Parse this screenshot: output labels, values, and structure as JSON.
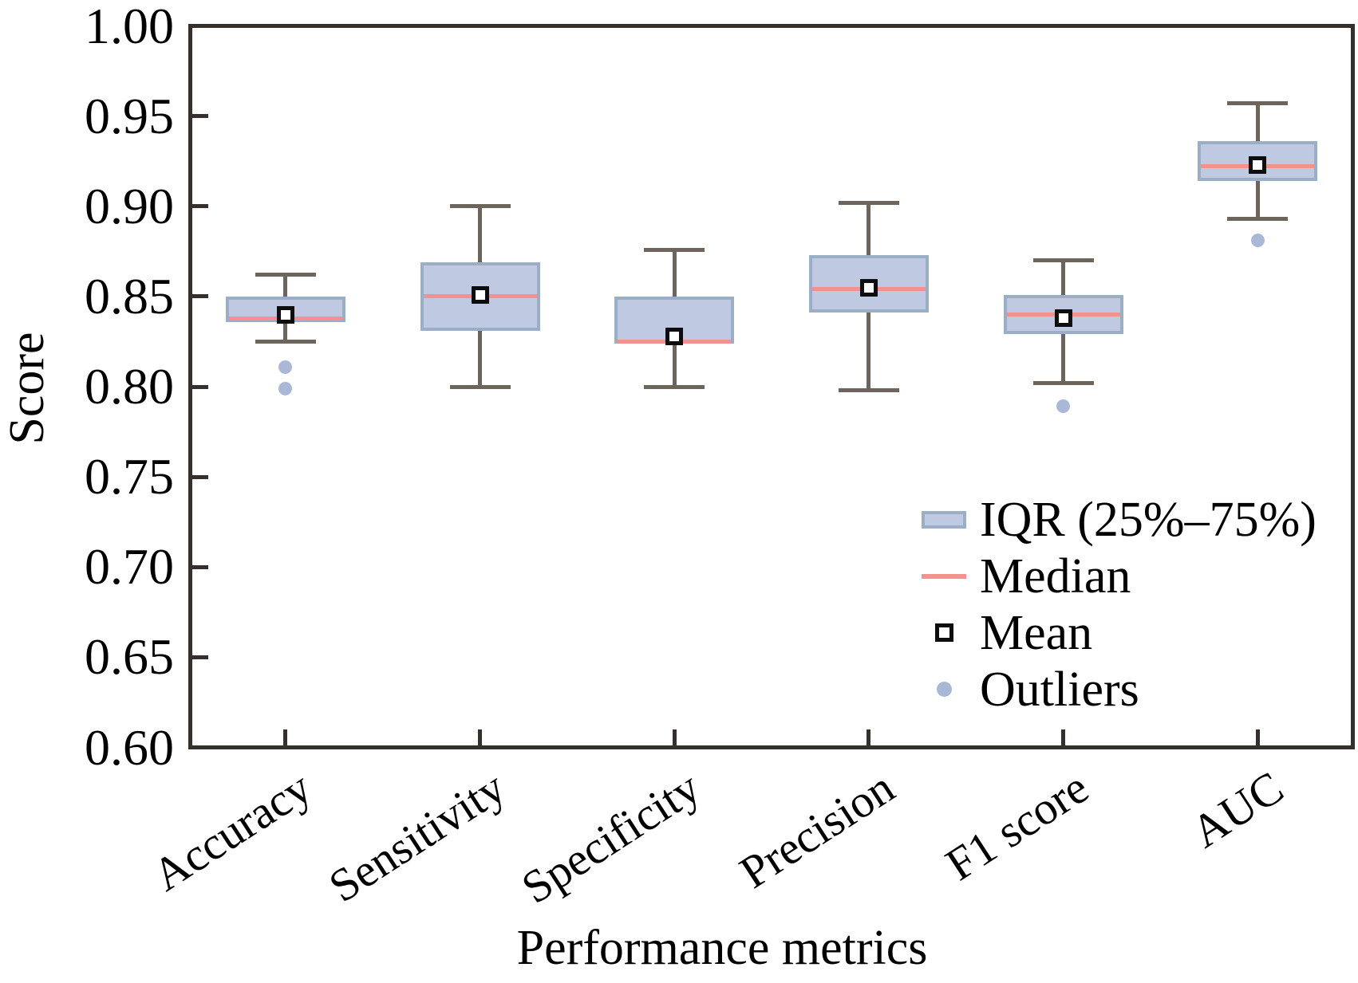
{
  "figure": {
    "title": "",
    "y_axis_title": "Score",
    "x_axis_title": "Performance metrics"
  },
  "legend": {
    "items": [
      {
        "icon": "iqr-swatch",
        "label": "IQR (25%–75%)"
      },
      {
        "icon": "median-line",
        "label": "Median"
      },
      {
        "icon": "mean-marker",
        "label": "Mean"
      },
      {
        "icon": "outlier-dot",
        "label": "Outliers"
      }
    ]
  },
  "chart_data": {
    "type": "boxplot",
    "title": "",
    "xlabel": "Performance metrics",
    "ylabel": "Score",
    "ylim": [
      0.6,
      1.0
    ],
    "ytick_step": 0.05,
    "yticks": [
      1.0,
      0.95,
      0.9,
      0.85,
      0.8,
      0.75,
      0.7,
      0.65,
      0.6
    ],
    "ytick_labels": [
      "1.00",
      "0.95",
      "0.90",
      "0.85",
      "0.80",
      "0.75",
      "0.70",
      "0.65",
      "0.60"
    ],
    "grid": false,
    "legend_position": "lower right inside",
    "categories": [
      "Accuracy",
      "Sensitivity",
      "Specificity",
      "Precision",
      "F1 score",
      "AUC"
    ],
    "boxes": [
      {
        "label": "Accuracy",
        "whislo": 0.825,
        "q1": 0.836,
        "med": 0.838,
        "mean": 0.84,
        "q3": 0.85,
        "whishi": 0.862,
        "outliers": [
          0.811,
          0.799
        ]
      },
      {
        "label": "Sensitivity",
        "whislo": 0.8,
        "q1": 0.831,
        "med": 0.85,
        "mean": 0.851,
        "q3": 0.869,
        "whishi": 0.9,
        "outliers": []
      },
      {
        "label": "Specificity",
        "whislo": 0.8,
        "q1": 0.824,
        "med": 0.825,
        "mean": 0.828,
        "q3": 0.85,
        "whishi": 0.876,
        "outliers": []
      },
      {
        "label": "Precision",
        "whislo": 0.798,
        "q1": 0.841,
        "med": 0.854,
        "mean": 0.855,
        "q3": 0.873,
        "whishi": 0.902,
        "outliers": []
      },
      {
        "label": "F1 score",
        "whislo": 0.802,
        "q1": 0.829,
        "med": 0.84,
        "mean": 0.838,
        "q3": 0.851,
        "whishi": 0.87,
        "outliers": [
          0.789
        ]
      },
      {
        "label": "AUC",
        "whislo": 0.893,
        "q1": 0.914,
        "med": 0.922,
        "mean": 0.923,
        "q3": 0.936,
        "whishi": 0.957,
        "outliers": [
          0.881
        ]
      }
    ],
    "colors": {
      "box_fill": "#bfc9e1",
      "box_border": "#9aaec6",
      "median": "#f4908f",
      "whisker": "#6d645c",
      "mean_fill": "#ffffff",
      "mean_border": "#0d0d0d",
      "outlier": "#aab8d8",
      "axis_frame": "#35302c",
      "text": "#000000"
    }
  }
}
